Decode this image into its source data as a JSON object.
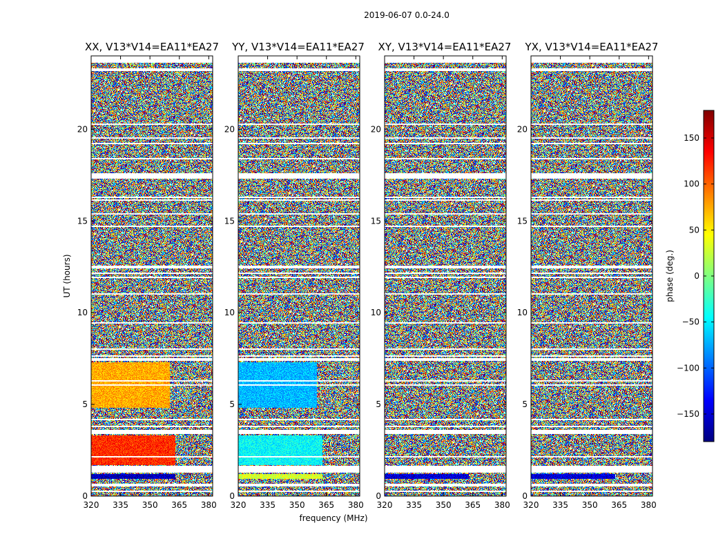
{
  "chart_data": {
    "type": "heatmap",
    "suptitle": "2019-06-07 0.0-24.0",
    "xlabel": "frequency (MHz)",
    "ylabel": "UT (hours)",
    "xlim": [
      320,
      382
    ],
    "ylim": [
      0,
      24
    ],
    "xticks": [
      320,
      335,
      350,
      365,
      380
    ],
    "yticks": [
      0,
      5,
      10,
      15,
      20
    ],
    "colormap": "jet",
    "colorbar": {
      "label": "phase (deg.)",
      "range": [
        -180,
        180
      ],
      "ticks": [
        150,
        100,
        50,
        0,
        -50,
        -100,
        -150
      ],
      "tick_labels": [
        "150",
        "100",
        "50",
        "0",
        "−50",
        "−100",
        "−150"
      ]
    },
    "panels": [
      {
        "title": "XX, V13*V14=EA11*EA27",
        "features": [
          {
            "ut": [
              0.95,
              1.2
            ],
            "freq": [
              320,
              363
            ],
            "phase": -160
          },
          {
            "ut": [
              1.7,
              3.3
            ],
            "freq": [
              320,
              363
            ],
            "phase": 120
          },
          {
            "ut": [
              4.8,
              7.3
            ],
            "freq": [
              320,
              360
            ],
            "phase": 75
          }
        ]
      },
      {
        "title": "YY, V13*V14=EA11*EA27",
        "features": [
          {
            "ut": [
              0.95,
              1.2
            ],
            "freq": [
              320,
              363
            ],
            "phase": 30
          },
          {
            "ut": [
              1.7,
              3.3
            ],
            "freq": [
              320,
              363
            ],
            "phase": -45
          },
          {
            "ut": [
              4.8,
              7.3
            ],
            "freq": [
              320,
              360
            ],
            "phase": -70
          }
        ]
      },
      {
        "title": "XY, V13*V14=EA11*EA27",
        "features": [
          {
            "ut": [
              0.95,
              1.2
            ],
            "freq": [
              320,
              363
            ],
            "phase": -150
          }
        ]
      },
      {
        "title": "YX, V13*V14=EA11*EA27",
        "features": [
          {
            "ut": [
              0.95,
              1.2
            ],
            "freq": [
              320,
              363
            ],
            "phase": -150
          }
        ]
      }
    ],
    "flagged_ut_gaps": [
      [
        0.55,
        0.65
      ],
      [
        1.25,
        1.65
      ],
      [
        3.45,
        3.6
      ],
      [
        7.35,
        7.5
      ],
      [
        12.4,
        12.55
      ],
      [
        17.3,
        17.6
      ],
      [
        23.15,
        23.35
      ],
      [
        23.65,
        24.0
      ]
    ]
  }
}
